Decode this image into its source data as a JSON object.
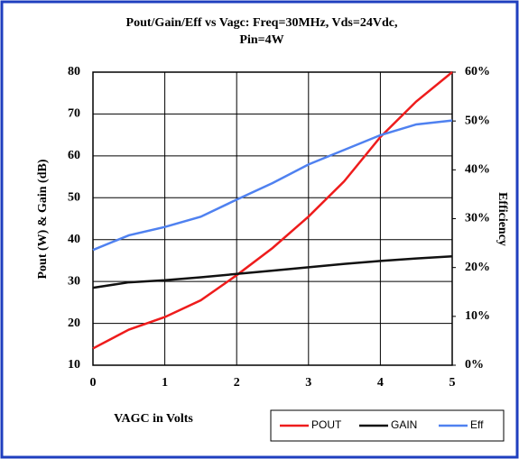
{
  "chart_data": {
    "type": "line",
    "title": [
      "Pout/Gain/Eff vs Vagc: Freq=30MHz, Vds=24Vdc,",
      "Pin=4W"
    ],
    "xlabel": "VAGC in Volts",
    "ylabel": "Pout (W) & Gain (dB)",
    "y2label": "Efficiency",
    "x": [
      0,
      0.5,
      1,
      1.5,
      2,
      2.5,
      3,
      3.5,
      4,
      4.5,
      5
    ],
    "series": [
      {
        "name": "POUT",
        "color": "#ee1c1c",
        "values": [
          14,
          18.5,
          21.5,
          25.5,
          31.5,
          38,
          45.5,
          54,
          64.5,
          73,
          80
        ]
      },
      {
        "name": "GAIN",
        "color": "#111111",
        "values": [
          28.5,
          29.8,
          30.3,
          31,
          31.8,
          32.6,
          33.4,
          34.2,
          34.9,
          35.5,
          36
        ]
      },
      {
        "name": "Eff",
        "color": "#4f81f0",
        "axis": "y2",
        "values": [
          23.6,
          26.6,
          28.3,
          30.4,
          33.9,
          37.3,
          41.1,
          44.1,
          47.1,
          49.3,
          50.1
        ]
      }
    ],
    "xlim": [
      0,
      5
    ],
    "xticks": [
      0,
      1,
      2,
      3,
      4,
      5
    ],
    "ylim": [
      10,
      80
    ],
    "yticks": [
      10,
      20,
      30,
      40,
      50,
      60,
      70,
      80
    ],
    "y2lim": [
      0,
      60
    ],
    "y2ticks": [
      {
        "value": 0,
        "label": "0%"
      },
      {
        "value": 10,
        "label": "10%"
      },
      {
        "value": 20,
        "label": "20%"
      },
      {
        "value": 30,
        "label": "30%"
      },
      {
        "value": 40,
        "label": "40%"
      },
      {
        "value": 50,
        "label": "50%"
      },
      {
        "value": 60,
        "label": "60%"
      }
    ],
    "grid": true,
    "legend": "bottom-right"
  }
}
